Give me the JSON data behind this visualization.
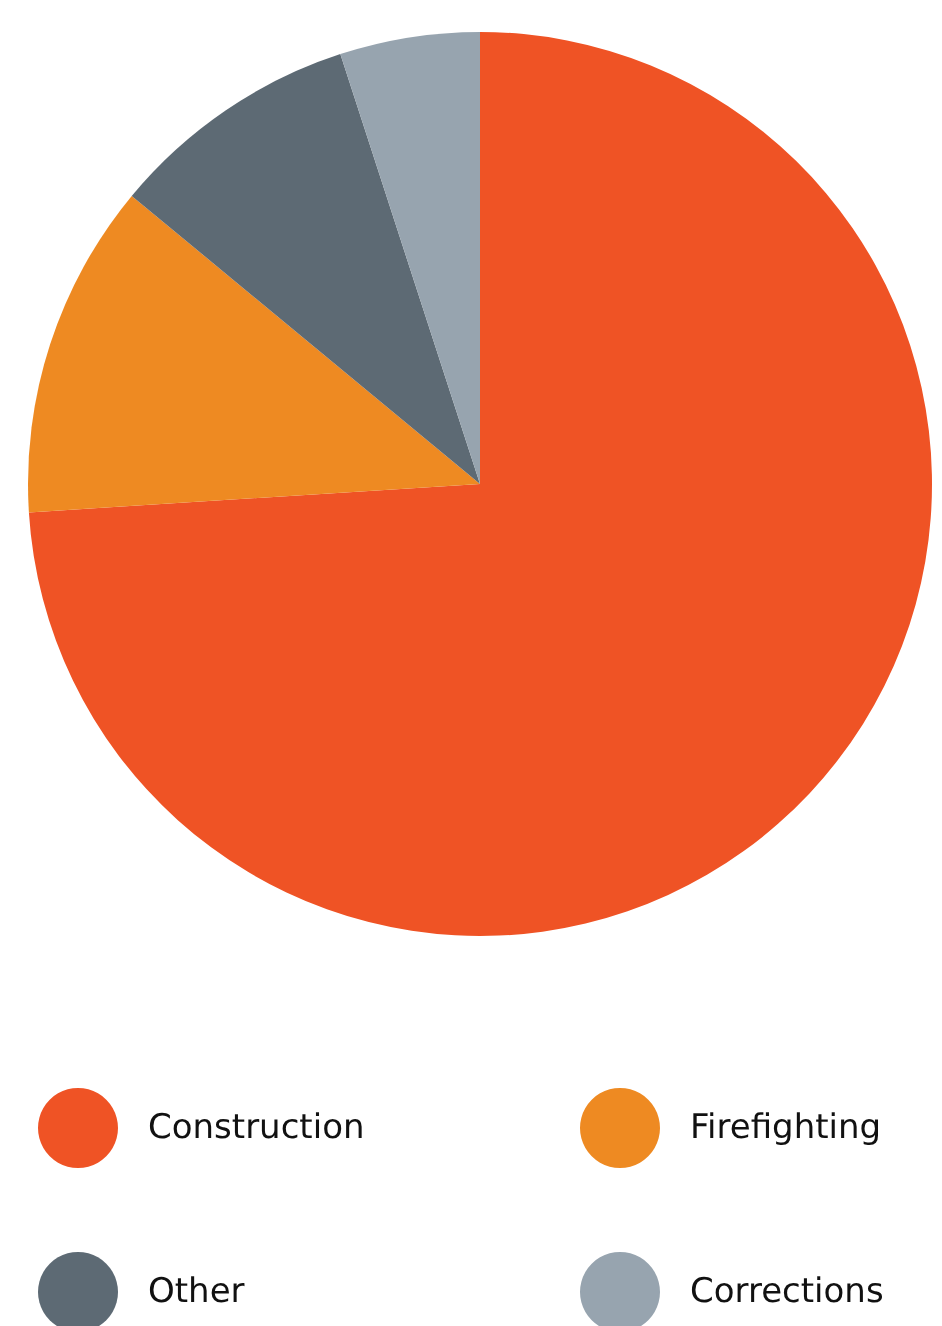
{
  "chart_data": {
    "type": "pie",
    "categories": [
      "Construction",
      "Firefighting",
      "Other",
      "Corrections"
    ],
    "values": [
      74,
      12,
      9,
      5
    ],
    "colors": [
      "#ef5325",
      "#ee8a22",
      "#5d6a74",
      "#97a4af"
    ],
    "legend": "bottom"
  }
}
